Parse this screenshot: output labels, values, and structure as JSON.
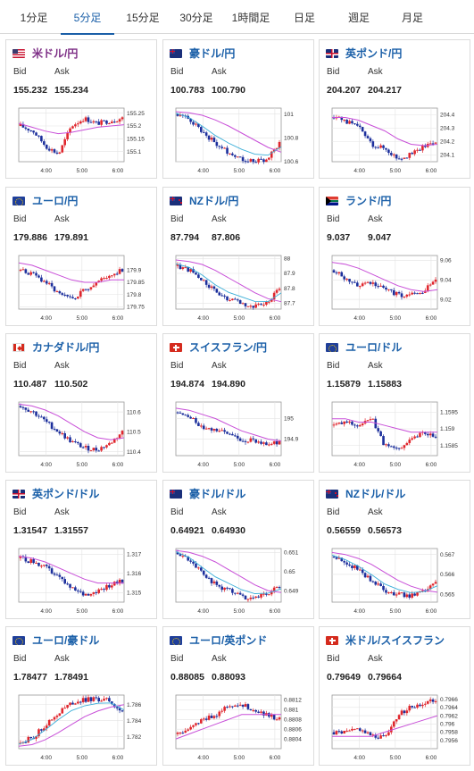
{
  "tabs": [
    {
      "label": "1分足",
      "active": false
    },
    {
      "label": "5分足",
      "active": true
    },
    {
      "label": "15分足",
      "active": false
    },
    {
      "label": "30分足",
      "active": false
    },
    {
      "label": "1時間足",
      "active": false
    },
    {
      "label": "日足",
      "active": false
    },
    {
      "label": "週足",
      "active": false
    },
    {
      "label": "月足",
      "active": false
    }
  ],
  "labels": {
    "bid": "Bid",
    "ask": "Ask"
  },
  "colors": {
    "accent": "#1a5fa8",
    "up": "#e0262d",
    "down": "#1c2f9c",
    "ma_long": "#c84fd8",
    "ma_short": "#3aaed8"
  },
  "cards": [
    {
      "name": "米ドル/円",
      "flag": "flag-us",
      "bid": "155.232",
      "ask": "155.234",
      "chart_data": {
        "type": "candlestick",
        "x_ticks": [
          "4:00",
          "5:00",
          "6:00"
        ],
        "y_ticks": [
          "155.25",
          "155.2",
          "155.15",
          "155.1"
        ],
        "ylim": [
          155.06,
          155.27
        ],
        "trend": [
          155.2,
          155.18,
          155.12,
          155.09,
          155.2,
          155.23,
          155.21,
          155.22,
          155.23
        ],
        "ma": [
          155.21,
          155.195,
          155.18,
          155.17,
          155.175,
          155.185,
          155.195,
          155.2,
          155.205
        ],
        "short_ma": false
      }
    },
    {
      "name": "豪ドル/円",
      "flag": "flag-au",
      "bid": "100.783",
      "ask": "100.790",
      "chart_data": {
        "type": "candlestick",
        "x_ticks": [
          "4:00",
          "5:00",
          "6:00"
        ],
        "y_ticks": [
          "101",
          "100.8",
          "100.6"
        ],
        "ylim": [
          100.6,
          101.05
        ],
        "trend": [
          101.0,
          100.95,
          100.85,
          100.75,
          100.68,
          100.63,
          100.6,
          100.62,
          100.75
        ],
        "ma": [
          101.02,
          101.01,
          100.99,
          100.95,
          100.9,
          100.84,
          100.78,
          100.72,
          100.68
        ],
        "short_ma": true
      }
    },
    {
      "name": "英ポンド/円",
      "flag": "flag-gb",
      "bid": "204.207",
      "ask": "204.217",
      "chart_data": {
        "type": "candlestick",
        "x_ticks": [
          "4:00",
          "5:00",
          "6:00"
        ],
        "y_ticks": [
          "204.4",
          "204.3",
          "204.2",
          "204.1"
        ],
        "ylim": [
          204.05,
          204.45
        ],
        "trend": [
          204.38,
          204.35,
          204.3,
          204.18,
          204.15,
          204.08,
          204.1,
          204.16,
          204.21
        ],
        "ma": [
          204.38,
          204.38,
          204.36,
          204.32,
          204.28,
          204.22,
          204.18,
          204.17,
          204.18
        ],
        "short_ma": false
      }
    },
    {
      "name": "ユーロ/円",
      "flag": "flag-eu",
      "bid": "179.886",
      "ask": "179.891",
      "chart_data": {
        "type": "candlestick",
        "x_ticks": [
          "4:00",
          "5:00",
          "6:00"
        ],
        "y_ticks": [
          "179.9",
          "179.85",
          "179.8",
          "179.75"
        ],
        "ylim": [
          179.74,
          179.96
        ],
        "trend": [
          179.9,
          179.88,
          179.85,
          179.8,
          179.78,
          179.82,
          179.85,
          179.88,
          179.9
        ],
        "ma": [
          179.93,
          179.92,
          179.9,
          179.88,
          179.86,
          179.85,
          179.85,
          179.86,
          179.86
        ],
        "short_ma": false
      }
    },
    {
      "name": "NZドル/円",
      "flag": "flag-nz",
      "bid": "87.794",
      "ask": "87.806",
      "chart_data": {
        "type": "candlestick",
        "x_ticks": [
          "4:00",
          "5:00",
          "6:00"
        ],
        "y_ticks": [
          "88",
          "87.9",
          "87.8",
          "87.7"
        ],
        "ylim": [
          87.66,
          88.02
        ],
        "trend": [
          87.95,
          87.92,
          87.85,
          87.77,
          87.72,
          87.7,
          87.68,
          87.7,
          87.8
        ],
        "ma": [
          87.99,
          87.98,
          87.96,
          87.92,
          87.87,
          87.82,
          87.77,
          87.73,
          87.71
        ],
        "short_ma": true
      }
    },
    {
      "name": "ランド/円",
      "flag": "flag-za",
      "bid": "9.037",
      "ask": "9.047",
      "chart_data": {
        "type": "candlestick",
        "x_ticks": [
          "4:00",
          "5:00",
          "6:00"
        ],
        "y_ticks": [
          "9.06",
          "9.04",
          "9.02"
        ],
        "ylim": [
          9.01,
          9.065
        ],
        "trend": [
          9.05,
          9.04,
          9.035,
          9.038,
          9.03,
          9.025,
          9.024,
          9.028,
          9.04
        ],
        "ma": [
          9.058,
          9.056,
          9.052,
          9.046,
          9.04,
          9.034,
          9.03,
          9.028,
          9.03
        ],
        "short_ma": false
      }
    },
    {
      "name": "カナダドル/円",
      "flag": "flag-ca",
      "bid": "110.487",
      "ask": "110.502",
      "chart_data": {
        "type": "candlestick",
        "x_ticks": [
          "4:00",
          "5:00",
          "6:00"
        ],
        "y_ticks": [
          "110.6",
          "110.5",
          "110.4"
        ],
        "ylim": [
          110.38,
          110.65
        ],
        "trend": [
          110.63,
          110.6,
          110.55,
          110.5,
          110.45,
          110.42,
          110.41,
          110.44,
          110.5
        ],
        "ma": [
          110.64,
          110.63,
          110.61,
          110.58,
          110.54,
          110.5,
          110.47,
          110.46,
          110.47
        ],
        "short_ma": false
      }
    },
    {
      "name": "スイスフラン/円",
      "flag": "flag-ch",
      "bid": "194.874",
      "ask": "194.890",
      "chart_data": {
        "type": "candlestick",
        "x_ticks": [
          "4:00",
          "5:00",
          "6:00"
        ],
        "y_ticks": [
          "195",
          "194.9"
        ],
        "ylim": [
          194.82,
          195.08
        ],
        "trend": [
          195.03,
          195.0,
          194.96,
          194.95,
          194.92,
          194.9,
          194.89,
          194.88,
          194.88
        ],
        "ma": [
          195.05,
          195.04,
          195.02,
          195.0,
          194.97,
          194.94,
          194.92,
          194.9,
          194.89
        ],
        "short_ma": false
      }
    },
    {
      "name": "ユーロ/ドル",
      "flag": "flag-eu",
      "bid": "1.15879",
      "ask": "1.15883",
      "chart_data": {
        "type": "candlestick",
        "x_ticks": [
          "4:00",
          "5:00",
          "6:00"
        ],
        "y_ticks": [
          "1.1595",
          "1.159",
          "1.1585"
        ],
        "ylim": [
          1.1582,
          1.1598
        ],
        "trend": [
          1.1591,
          1.1592,
          1.1591,
          1.1593,
          1.1585,
          1.1584,
          1.1587,
          1.1589,
          1.1588
        ],
        "ma": [
          1.1593,
          1.1593,
          1.1592,
          1.1592,
          1.1591,
          1.159,
          1.1589,
          1.1589,
          1.1589
        ],
        "short_ma": false
      }
    },
    {
      "name": "英ポンド/ドル",
      "flag": "flag-gb",
      "bid": "1.31547",
      "ask": "1.31557",
      "chart_data": {
        "type": "candlestick",
        "x_ticks": [
          "4:00",
          "5:00",
          "6:00"
        ],
        "y_ticks": [
          "1.317",
          "1.316",
          "1.315"
        ],
        "ylim": [
          1.3145,
          1.3173
        ],
        "trend": [
          1.3168,
          1.3166,
          1.3163,
          1.3158,
          1.3152,
          1.3149,
          1.3151,
          1.3154,
          1.3156
        ],
        "ma": [
          1.3169,
          1.3168,
          1.3166,
          1.3163,
          1.316,
          1.3157,
          1.3155,
          1.3155,
          1.3155
        ],
        "short_ma": false
      }
    },
    {
      "name": "豪ドル/ドル",
      "flag": "flag-au",
      "bid": "0.64921",
      "ask": "0.64930",
      "chart_data": {
        "type": "candlestick",
        "x_ticks": [
          "4:00",
          "5:00",
          "6:00"
        ],
        "y_ticks": [
          "0.651",
          "0.65",
          "0.649"
        ],
        "ylim": [
          0.6484,
          0.6512
        ],
        "trend": [
          0.651,
          0.6506,
          0.6499,
          0.6493,
          0.649,
          0.6487,
          0.6486,
          0.6488,
          0.6492
        ],
        "ma": [
          0.6511,
          0.651,
          0.6508,
          0.6505,
          0.6501,
          0.6497,
          0.6493,
          0.649,
          0.6489
        ],
        "short_ma": true
      }
    },
    {
      "name": "NZドル/ドル",
      "flag": "flag-nz",
      "bid": "0.56559",
      "ask": "0.56573",
      "chart_data": {
        "type": "candlestick",
        "x_ticks": [
          "4:00",
          "5:00",
          "6:00"
        ],
        "y_ticks": [
          "0.567",
          "0.566",
          "0.565"
        ],
        "ylim": [
          0.5646,
          0.5673
        ],
        "trend": [
          0.5669,
          0.5666,
          0.5662,
          0.5657,
          0.5652,
          0.565,
          0.5649,
          0.5651,
          0.5656
        ],
        "ma": [
          0.5671,
          0.567,
          0.5668,
          0.5665,
          0.5661,
          0.5657,
          0.5654,
          0.5652,
          0.5651
        ],
        "short_ma": true
      }
    },
    {
      "name": "ユーロ/豪ドル",
      "flag": "flag-eu",
      "bid": "1.78477",
      "ask": "1.78491",
      "chart_data": {
        "type": "candlestick",
        "x_ticks": [
          "4:00",
          "5:00",
          "6:00"
        ],
        "y_ticks": [
          "1.786",
          "1.784",
          "1.782"
        ],
        "ylim": [
          1.7805,
          1.7872
        ],
        "trend": [
          1.7812,
          1.782,
          1.7835,
          1.785,
          1.7862,
          1.7866,
          1.7867,
          1.7865,
          1.785
        ],
        "ma": [
          1.7808,
          1.781,
          1.7816,
          1.7825,
          1.7835,
          1.7845,
          1.7852,
          1.7857,
          1.786
        ],
        "short_ma": true
      }
    },
    {
      "name": "ユーロ/英ポンド",
      "flag": "flag-eu",
      "bid": "0.88085",
      "ask": "0.88093",
      "chart_data": {
        "type": "candlestick",
        "x_ticks": [
          "4:00",
          "5:00",
          "6:00"
        ],
        "y_ticks": [
          "0.8812",
          "0.881",
          "0.8808",
          "0.8806",
          "0.8804"
        ],
        "ylim": [
          0.8802,
          0.8813
        ],
        "trend": [
          0.8805,
          0.8806,
          0.8808,
          0.8809,
          0.8811,
          0.8811,
          0.881,
          0.8809,
          0.8808
        ],
        "ma": [
          0.8804,
          0.8805,
          0.8806,
          0.8807,
          0.8808,
          0.8809,
          0.8809,
          0.8809,
          0.8809
        ],
        "short_ma": false
      }
    },
    {
      "name": "米ドル/スイスフラン",
      "flag": "flag-ch",
      "bid": "0.79649",
      "ask": "0.79664",
      "chart_data": {
        "type": "candlestick",
        "x_ticks": [
          "4:00",
          "5:00",
          "6:00"
        ],
        "y_ticks": [
          "0.7966",
          "0.7964",
          "0.7962",
          "0.796",
          "0.7958",
          "0.7956"
        ],
        "ylim": [
          0.7954,
          0.7967
        ],
        "trend": [
          0.7958,
          0.7958,
          0.7959,
          0.7957,
          0.7957,
          0.7962,
          0.7964,
          0.7965,
          0.7966
        ],
        "ma": [
          0.7957,
          0.7957,
          0.7957,
          0.7957,
          0.7958,
          0.7959,
          0.796,
          0.7961,
          0.7962
        ],
        "short_ma": false
      }
    }
  ]
}
